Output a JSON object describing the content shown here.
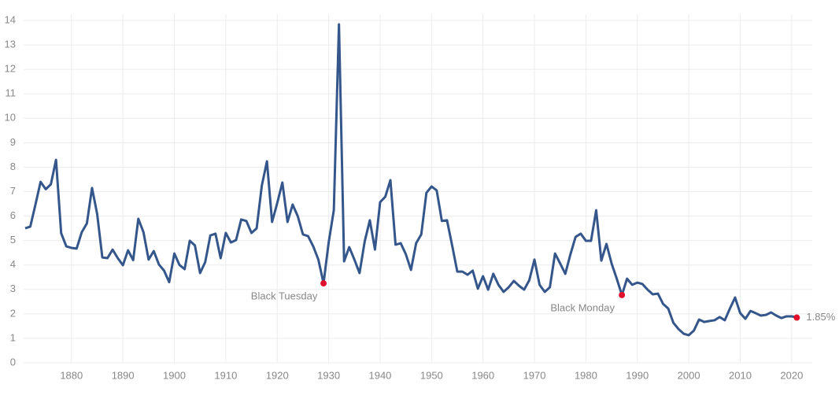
{
  "chart_data": {
    "type": "line",
    "x": [
      1871,
      1872,
      1873,
      1874,
      1875,
      1876,
      1877,
      1878,
      1879,
      1880,
      1881,
      1882,
      1883,
      1884,
      1885,
      1886,
      1887,
      1888,
      1889,
      1890,
      1891,
      1892,
      1893,
      1894,
      1895,
      1896,
      1897,
      1898,
      1899,
      1900,
      1901,
      1902,
      1903,
      1904,
      1905,
      1906,
      1907,
      1908,
      1909,
      1910,
      1911,
      1912,
      1913,
      1914,
      1915,
      1916,
      1917,
      1918,
      1919,
      1920,
      1921,
      1922,
      1923,
      1924,
      1925,
      1926,
      1927,
      1928,
      1929,
      1930,
      1931,
      1932,
      1933,
      1934,
      1935,
      1936,
      1937,
      1938,
      1939,
      1940,
      1941,
      1942,
      1943,
      1944,
      1945,
      1946,
      1947,
      1948,
      1949,
      1950,
      1951,
      1952,
      1953,
      1954,
      1955,
      1956,
      1957,
      1958,
      1959,
      1960,
      1961,
      1962,
      1963,
      1964,
      1965,
      1966,
      1967,
      1968,
      1969,
      1970,
      1971,
      1972,
      1973,
      1974,
      1975,
      1976,
      1977,
      1978,
      1979,
      1980,
      1981,
      1982,
      1983,
      1984,
      1985,
      1986,
      1987,
      1988,
      1989,
      1990,
      1991,
      1992,
      1993,
      1994,
      1995,
      1996,
      1997,
      1998,
      1999,
      2000,
      2001,
      2002,
      2003,
      2004,
      2005,
      2006,
      2007,
      2008,
      2009,
      2010,
      2011,
      2012,
      2013,
      2014,
      2015,
      2016,
      2017,
      2018,
      2019,
      2020,
      2021
    ],
    "series": [
      {
        "color": "#34568b",
        "values": [
          5.5,
          5.57,
          6.47,
          7.4,
          7.1,
          7.3,
          8.3,
          5.3,
          4.76,
          4.7,
          4.67,
          5.34,
          5.7,
          7.15,
          6.08,
          4.31,
          4.28,
          4.63,
          4.28,
          3.99,
          4.6,
          4.2,
          5.89,
          5.34,
          4.22,
          4.57,
          4.02,
          3.77,
          3.3,
          4.47,
          4.0,
          3.83,
          4.99,
          4.8,
          3.67,
          4.12,
          5.21,
          5.28,
          4.28,
          5.31,
          4.92,
          5.02,
          5.86,
          5.8,
          5.31,
          5.5,
          7.24,
          8.24,
          5.76,
          6.53,
          7.37,
          5.76,
          6.47,
          5.99,
          5.25,
          5.18,
          4.76,
          4.22,
          3.25,
          4.92,
          6.24,
          13.84,
          4.15,
          4.73,
          4.22,
          3.67,
          4.96,
          5.83,
          4.63,
          6.57,
          6.79,
          7.47,
          4.83,
          4.89,
          4.44,
          3.8,
          4.89,
          5.25,
          6.95,
          7.21,
          7.05,
          5.8,
          5.83,
          4.8,
          3.73,
          3.73,
          3.6,
          3.77,
          3.03,
          3.54,
          2.99,
          3.64,
          3.19,
          2.9,
          3.09,
          3.35,
          3.15,
          2.99,
          3.38,
          4.22,
          3.19,
          2.9,
          3.09,
          4.47,
          4.06,
          3.64,
          4.44,
          5.15,
          5.28,
          4.99,
          4.99,
          6.24,
          4.18,
          4.86,
          4.06,
          3.44,
          2.77,
          3.44,
          3.19,
          3.28,
          3.22,
          2.99,
          2.8,
          2.83,
          2.41,
          2.22,
          1.64,
          1.38,
          1.19,
          1.13,
          1.32,
          1.77,
          1.67,
          1.71,
          1.74,
          1.87,
          1.74,
          2.22,
          2.67,
          2.03,
          1.8,
          2.12,
          2.03,
          1.93,
          1.96,
          2.06,
          1.93,
          1.83,
          1.9,
          1.9,
          1.85
        ]
      }
    ],
    "annotations": [
      {
        "text": "Black Tuesday",
        "x": 1929,
        "y": 3.25,
        "color": "#e0102c"
      },
      {
        "text": "Black Monday",
        "x": 1987,
        "y": 2.77,
        "color": "#e0102c"
      },
      {
        "text": "1.85%",
        "x": 2021,
        "y": 1.85,
        "color": "#e0102c"
      }
    ],
    "xlim": [
      1870.7,
      2024
    ],
    "ylim": [
      0,
      14
    ],
    "xticks": [
      1880,
      1890,
      1900,
      1910,
      1920,
      1930,
      1940,
      1950,
      1960,
      1970,
      1980,
      1990,
      2000,
      2010,
      2020
    ],
    "yticks": [
      0,
      1,
      2,
      3,
      4,
      5,
      6,
      7,
      8,
      9,
      10,
      11,
      12,
      13,
      14
    ],
    "grid": true
  }
}
